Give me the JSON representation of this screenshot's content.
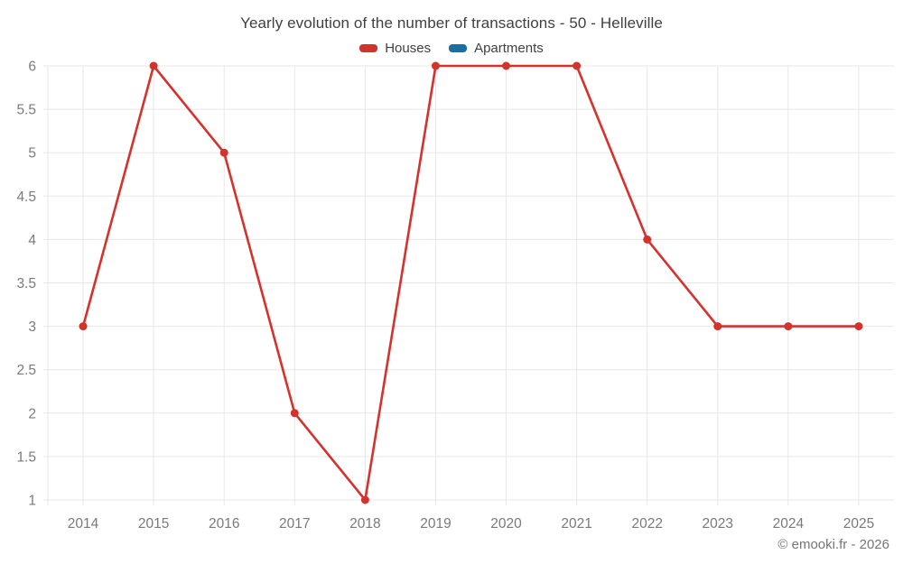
{
  "chart_data": {
    "type": "line",
    "title": "Yearly evolution of the number of transactions - 50 - Helleville",
    "categories": [
      "2014",
      "2015",
      "2016",
      "2017",
      "2018",
      "2019",
      "2020",
      "2021",
      "2022",
      "2023",
      "2024",
      "2025"
    ],
    "series": [
      {
        "name": "Houses",
        "color": "#d5312d",
        "values": [
          3,
          6,
          5,
          2,
          1,
          6,
          6,
          6,
          4,
          3,
          3,
          3
        ]
      },
      {
        "name": "Apartments",
        "color": "#17709f",
        "values": []
      }
    ],
    "xlabel": "",
    "ylabel": "",
    "ylim": [
      1,
      6
    ],
    "ytick_step": 0.5,
    "grid": true,
    "legend_position": "top"
  },
  "footer": {
    "copyright": "© emooki.fr - 2026"
  },
  "theme": {
    "background": "#ffffff",
    "grid_color": "#e7e7e7",
    "tick_label_color": "#7a7a7a",
    "title_color": "#404040",
    "legend_text_color": "#404040"
  }
}
